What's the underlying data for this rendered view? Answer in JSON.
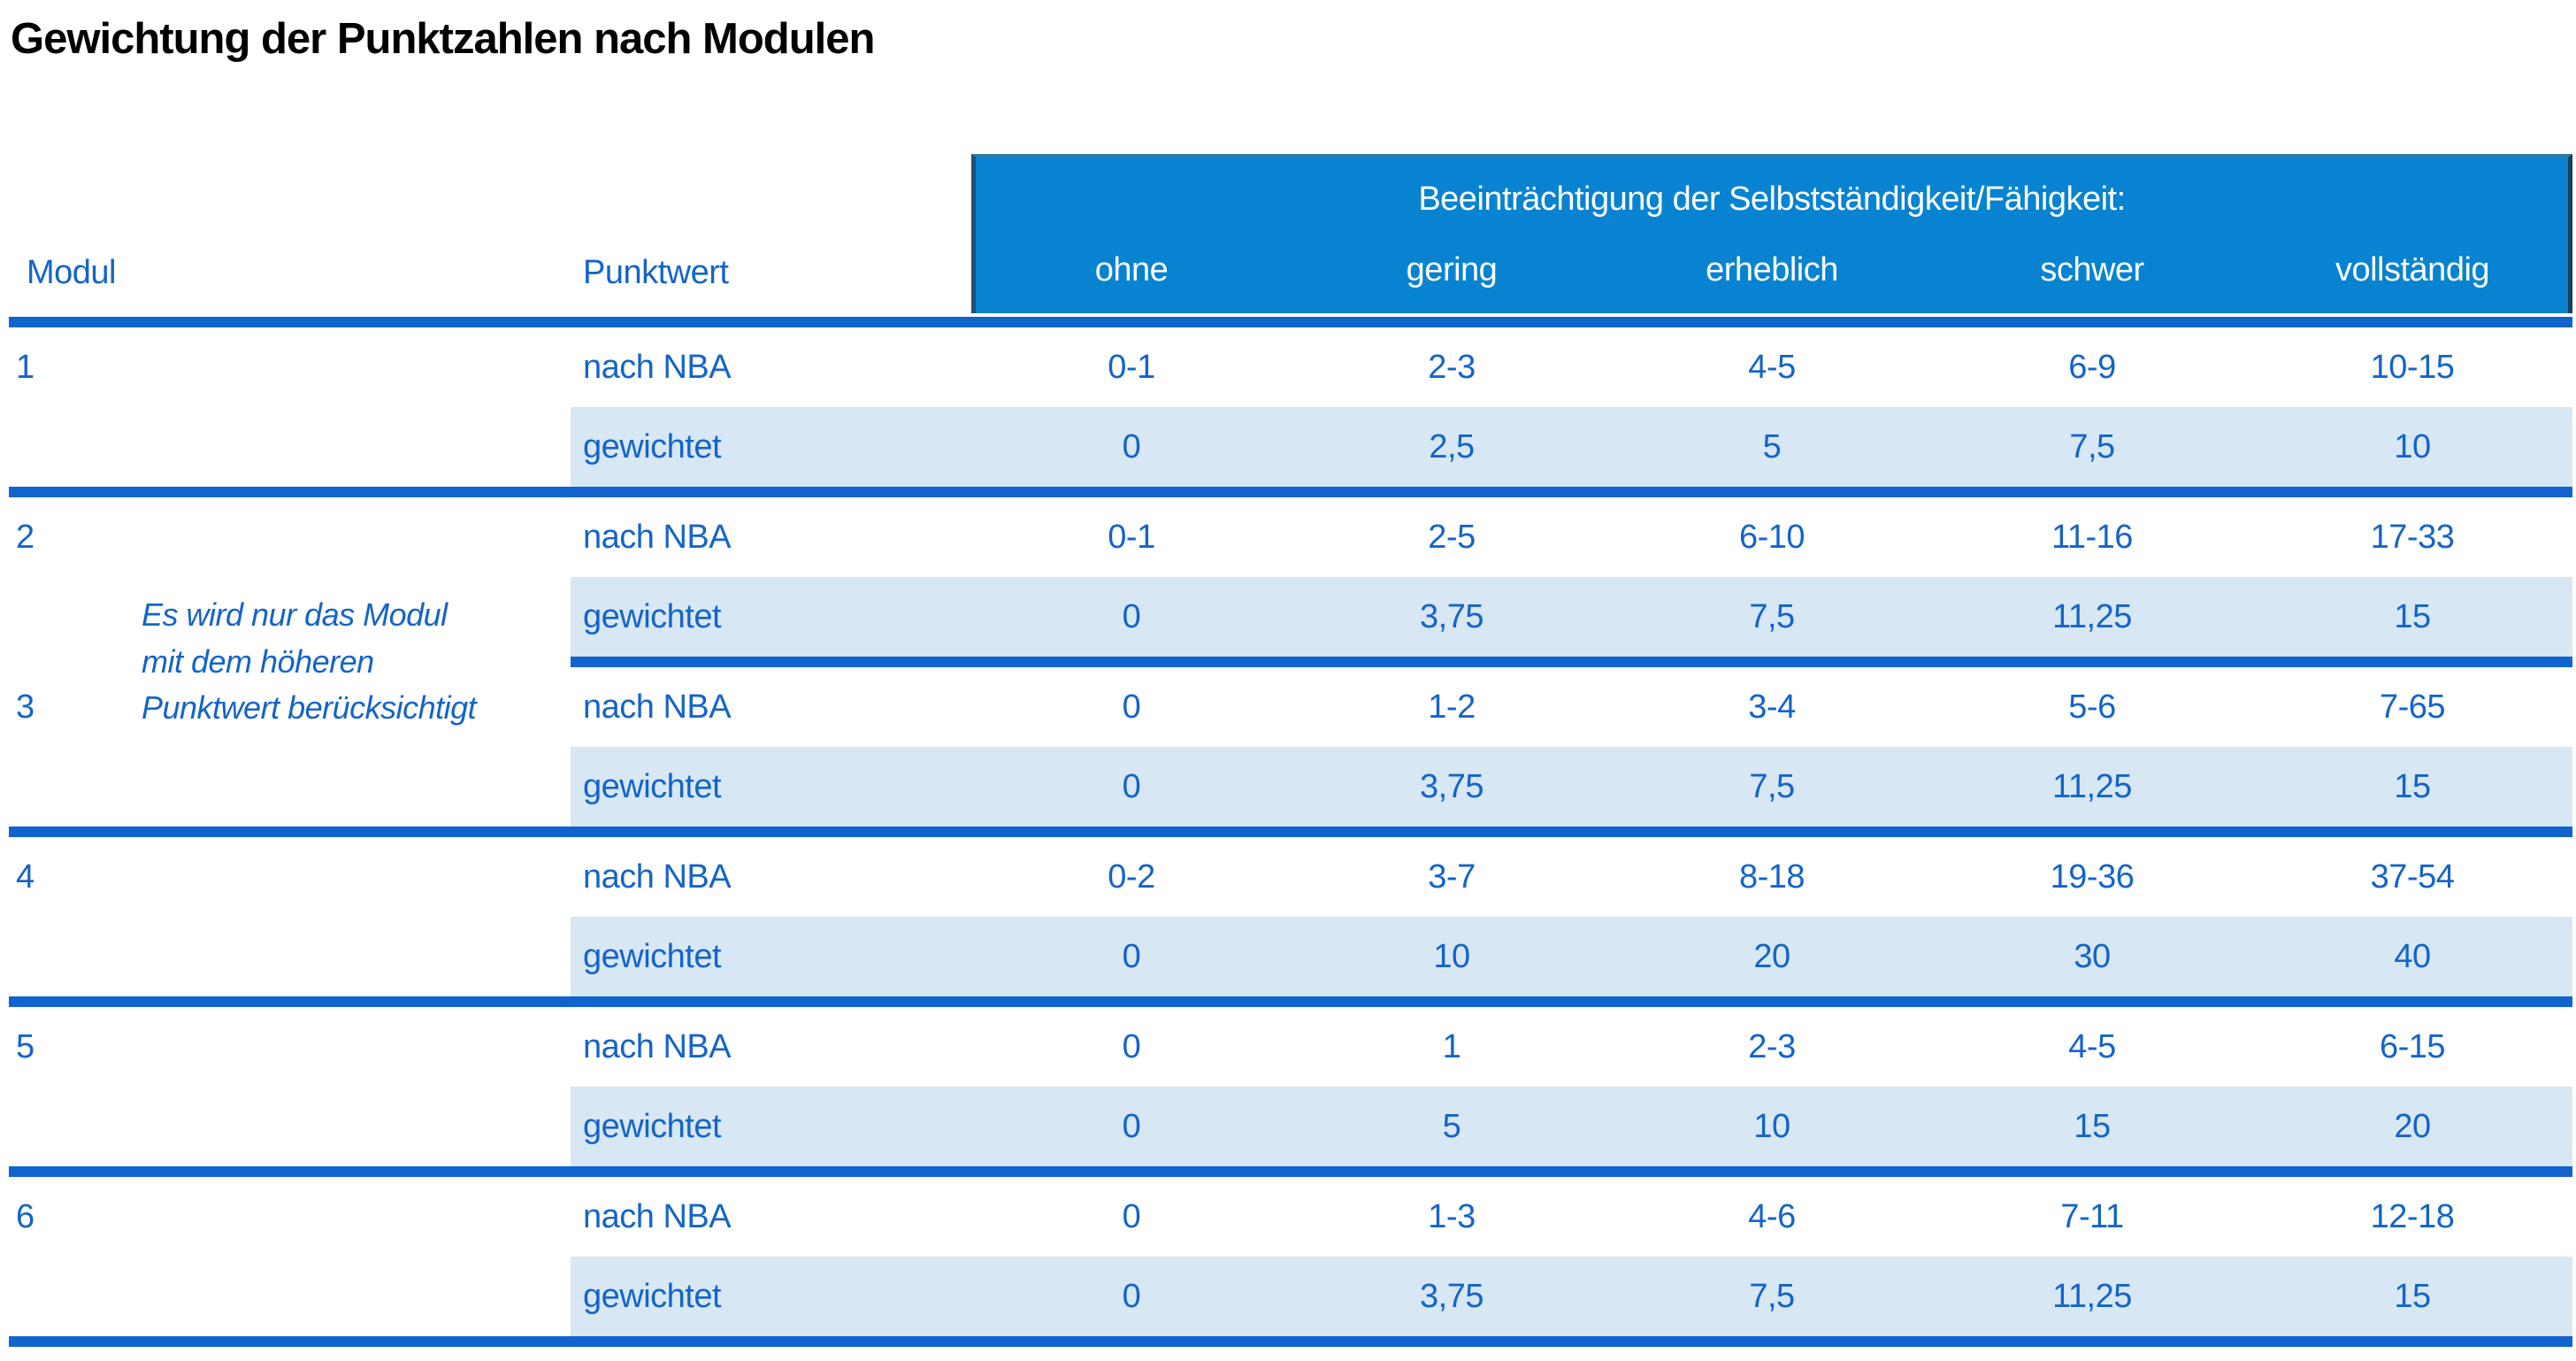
{
  "title": "Gewichtung der Punktzahlen nach Modulen",
  "table": {
    "group_header": "Beeinträchtigung der Selbstständigkeit/Fähigkeit:",
    "col_modul": "Modul",
    "col_punktwert": "Punktwert",
    "severity_levels": [
      "ohne",
      "gering",
      "erheblich",
      "schwer",
      "vollständig"
    ],
    "row_labels": {
      "nba": "nach NBA",
      "weighted": "gewichtet"
    },
    "note_lines": [
      "Es wird nur das Modul",
      "mit dem höheren",
      "Punktwert berücksichtigt"
    ],
    "modules": [
      {
        "id": "1",
        "nba": [
          "0-1",
          "2-3",
          "4-5",
          "6-9",
          "10-15"
        ],
        "weighted": [
          "0",
          "2,5",
          "5",
          "7,5",
          "10"
        ]
      },
      {
        "id": "2",
        "nba": [
          "0-1",
          "2-5",
          "6-10",
          "11-16",
          "17-33"
        ],
        "weighted": [
          "0",
          "3,75",
          "7,5",
          "11,25",
          "15"
        ]
      },
      {
        "id": "3",
        "nba": [
          "0",
          "1-2",
          "3-4",
          "5-6",
          "7-65"
        ],
        "weighted": [
          "0",
          "3,75",
          "7,5",
          "11,25",
          "15"
        ]
      },
      {
        "id": "4",
        "nba": [
          "0-2",
          "3-7",
          "8-18",
          "19-36",
          "37-54"
        ],
        "weighted": [
          "0",
          "10",
          "20",
          "30",
          "40"
        ]
      },
      {
        "id": "5",
        "nba": [
          "0",
          "1",
          "2-3",
          "4-5",
          "6-15"
        ],
        "weighted": [
          "0",
          "5",
          "10",
          "15",
          "20"
        ]
      },
      {
        "id": "6",
        "nba": [
          "0",
          "1-3",
          "4-6",
          "7-11",
          "12-18"
        ],
        "weighted": [
          "0",
          "3,75",
          "7,5",
          "11,25",
          "15"
        ]
      }
    ],
    "colors": {
      "band_blue": "#0883d1",
      "band_border_dark": "#1d4f74",
      "separator_blue": "#1163ce",
      "row_tint": "#d7e7f3",
      "text_blue": "#1464c8",
      "band_text": "#ffffff",
      "title_color": "#000000"
    }
  }
}
